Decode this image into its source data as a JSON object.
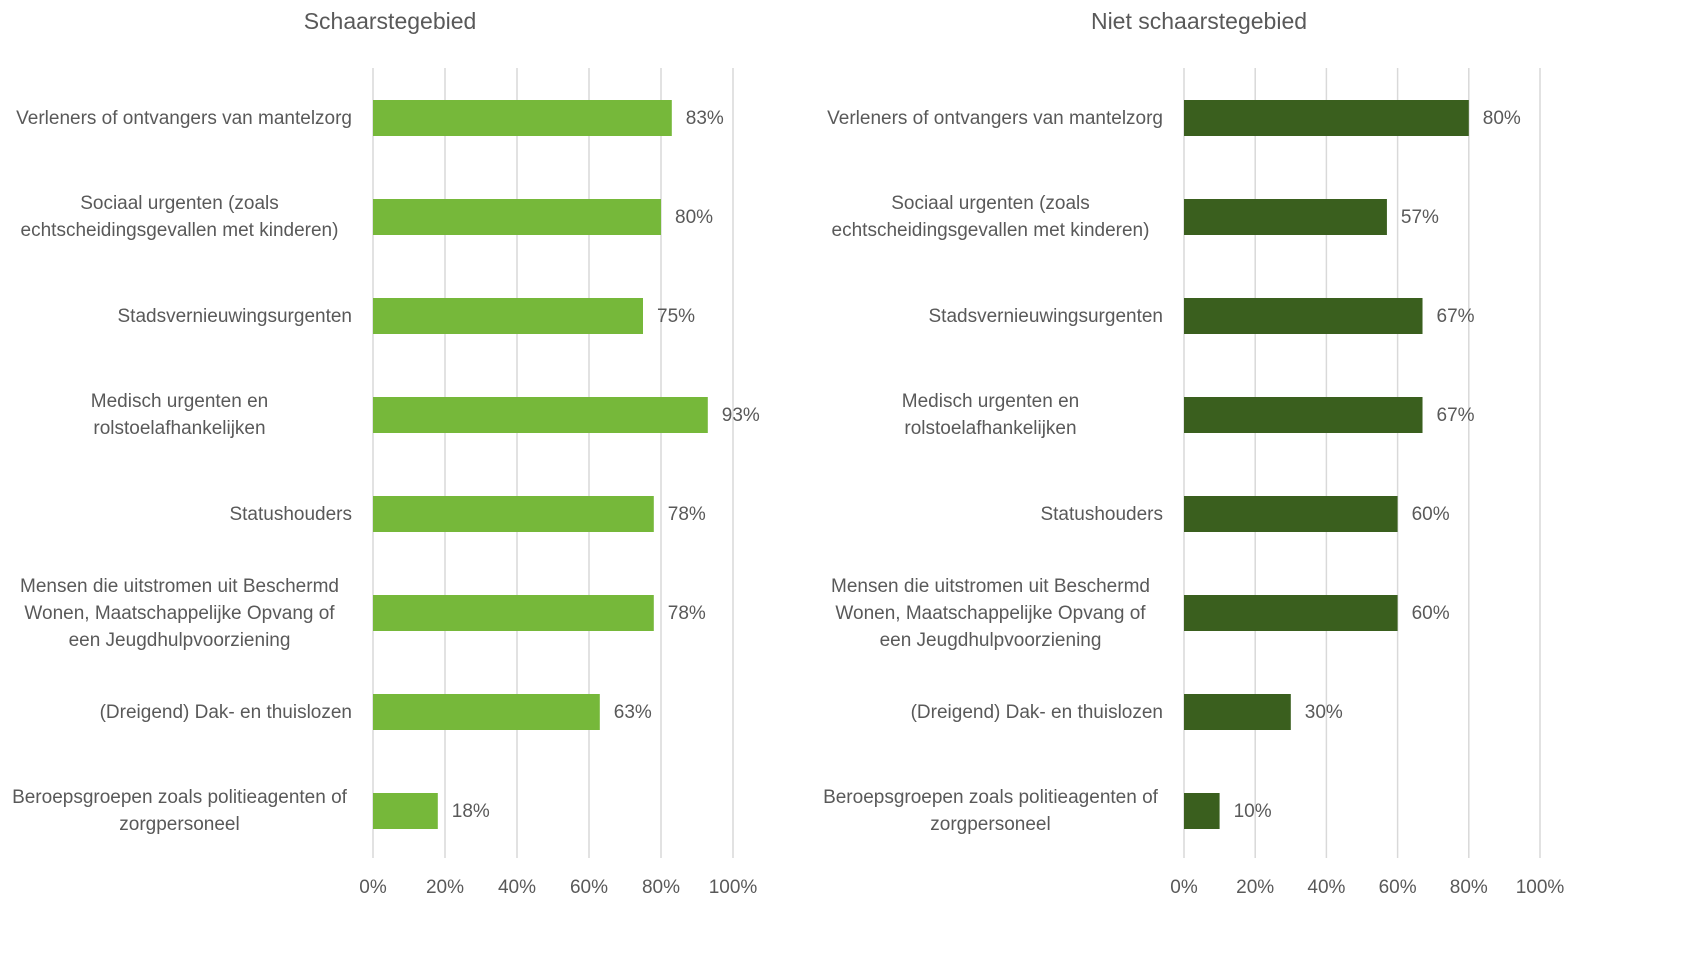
{
  "chart_data": [
    {
      "type": "bar",
      "orientation": "horizontal",
      "title": "Schaarstegebied",
      "categories": [
        "Verleners of ontvangers van mantelzorg",
        "Sociaal urgenten (zoals echtscheidingsgevallen met kinderen)",
        "Stadsvernieuwingsurgenten",
        "Medisch urgenten en rolstoelafhankelijken",
        "Statushouders",
        "Mensen die uitstromen uit Beschermd Wonen, Maatschappelijke Opvang of een Jeugdhulpvoorziening",
        "(Dreigend) Dak- en thuislozen",
        "Beroepsgroepen zoals politieagenten of zorgpersoneel"
      ],
      "values": [
        83,
        80,
        75,
        93,
        78,
        78,
        63,
        18
      ],
      "value_labels": [
        "83%",
        "80%",
        "75%",
        "93%",
        "78%",
        "78%",
        "63%",
        "18%"
      ],
      "color": "#76b83a",
      "xlim": [
        0,
        100
      ],
      "xticks": [
        {
          "value": 0,
          "label": "0%"
        },
        {
          "value": 20,
          "label": "20%"
        },
        {
          "value": 40,
          "label": "40%"
        },
        {
          "value": 60,
          "label": "60%"
        },
        {
          "value": 80,
          "label": "80%"
        },
        {
          "value": 100,
          "label": "100%"
        }
      ],
      "grid": true
    },
    {
      "type": "bar",
      "orientation": "horizontal",
      "title": "Niet schaarstegebied",
      "categories": [
        "Verleners of ontvangers van mantelzorg",
        "Sociaal urgenten (zoals echtscheidingsgevallen met kinderen)",
        "Stadsvernieuwingsurgenten",
        "Medisch urgenten en rolstoelafhankelijken",
        "Statushouders",
        "Mensen die uitstromen uit Beschermd Wonen, Maatschappelijke Opvang of een Jeugdhulpvoorziening",
        "(Dreigend) Dak- en thuislozen",
        "Beroepsgroepen zoals politieagenten of zorgpersoneel"
      ],
      "values": [
        80,
        57,
        67,
        67,
        60,
        60,
        30,
        10
      ],
      "value_labels": [
        "80%",
        "57%",
        "67%",
        "67%",
        "60%",
        "60%",
        "30%",
        "10%"
      ],
      "color": "#3a5f1e",
      "xlim": [
        0,
        100
      ],
      "xticks": [
        {
          "value": 0,
          "label": "0%"
        },
        {
          "value": 20,
          "label": "20%"
        },
        {
          "value": 40,
          "label": "40%"
        },
        {
          "value": 60,
          "label": "60%"
        },
        {
          "value": 80,
          "label": "80%"
        },
        {
          "value": 100,
          "label": "100%"
        }
      ],
      "grid": true
    }
  ]
}
